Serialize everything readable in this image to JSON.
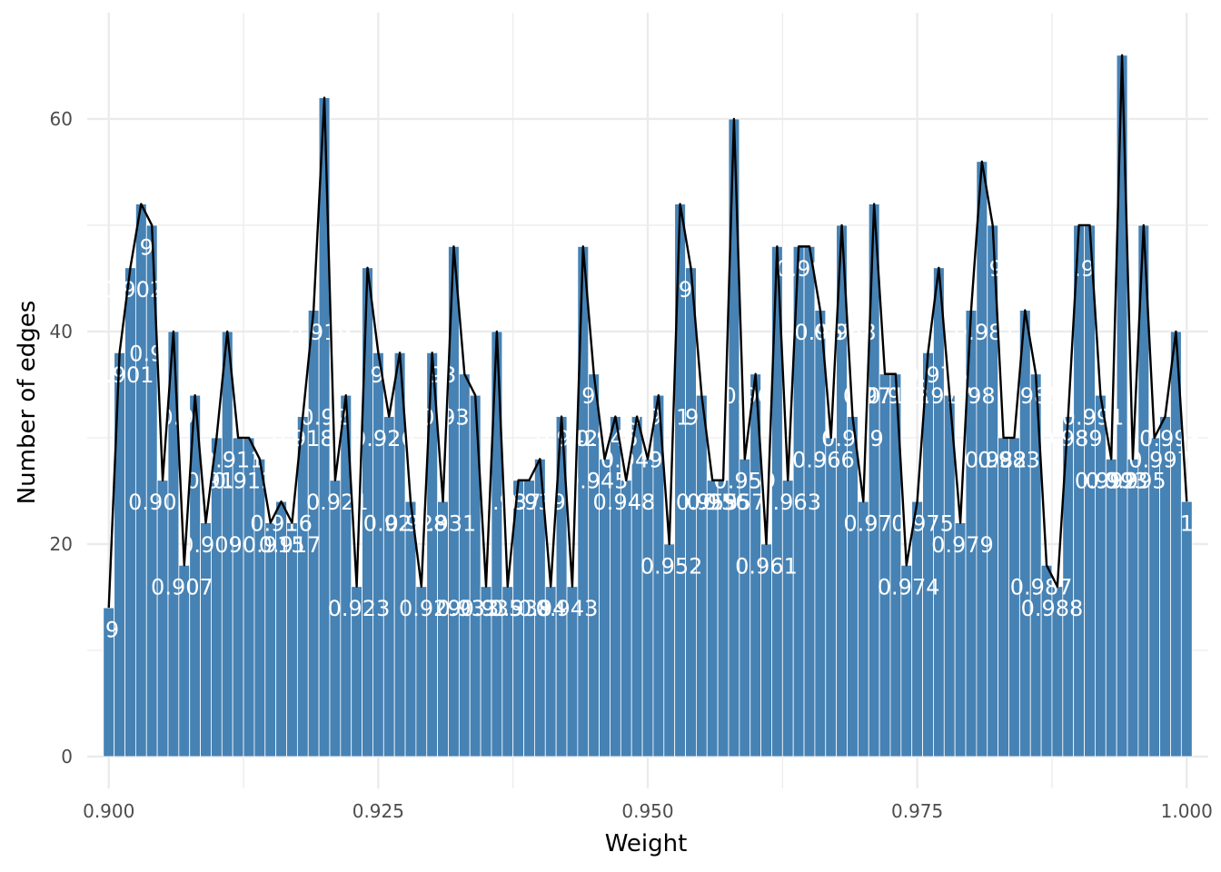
{
  "chart_data": {
    "type": "bar",
    "xlabel": "Weight",
    "ylabel": "Number of edges",
    "xlim": [
      0.898,
      1.002
    ],
    "ylim": [
      -3,
      70
    ],
    "xticks": [
      0.9,
      0.925,
      0.95,
      0.975,
      1.0
    ],
    "xtick_labels": [
      "0.900",
      "0.925",
      "0.950",
      "0.975",
      "1.000"
    ],
    "yticks": [
      0,
      20,
      40,
      60
    ],
    "ytick_labels": [
      "0",
      "20",
      "40",
      "60"
    ],
    "grid": true,
    "bar_color": "#4682b4",
    "line_color": "#000000",
    "bin_width": 0.001,
    "x": [
      0.9,
      0.901,
      0.902,
      0.903,
      0.904,
      0.905,
      0.906,
      0.907,
      0.908,
      0.909,
      0.91,
      0.911,
      0.912,
      0.913,
      0.914,
      0.915,
      0.916,
      0.917,
      0.918,
      0.919,
      0.92,
      0.921,
      0.922,
      0.923,
      0.924,
      0.925,
      0.926,
      0.927,
      0.928,
      0.929,
      0.93,
      0.931,
      0.932,
      0.933,
      0.934,
      0.935,
      0.936,
      0.937,
      0.938,
      0.939,
      0.94,
      0.941,
      0.942,
      0.943,
      0.944,
      0.945,
      0.946,
      0.947,
      0.948,
      0.949,
      0.95,
      0.951,
      0.952,
      0.953,
      0.954,
      0.955,
      0.956,
      0.957,
      0.958,
      0.959,
      0.96,
      0.961,
      0.962,
      0.963,
      0.964,
      0.965,
      0.966,
      0.967,
      0.968,
      0.969,
      0.97,
      0.971,
      0.972,
      0.973,
      0.974,
      0.975,
      0.976,
      0.977,
      0.978,
      0.979,
      0.98,
      0.981,
      0.982,
      0.983,
      0.984,
      0.985,
      0.986,
      0.987,
      0.988,
      0.989,
      0.99,
      0.991,
      0.992,
      0.993,
      0.994,
      0.995,
      0.996,
      0.997,
      0.998,
      0.999,
      1.0
    ],
    "values": [
      14,
      38,
      46,
      52,
      50,
      26,
      40,
      18,
      34,
      22,
      30,
      40,
      30,
      30,
      28,
      22,
      24,
      22,
      32,
      42,
      62,
      26,
      34,
      16,
      46,
      38,
      32,
      38,
      24,
      16,
      38,
      24,
      48,
      36,
      34,
      16,
      40,
      16,
      26,
      26,
      28,
      16,
      32,
      16,
      48,
      36,
      28,
      32,
      26,
      32,
      28,
      34,
      20,
      52,
      46,
      34,
      26,
      26,
      60,
      28,
      36,
      20,
      48,
      26,
      48,
      48,
      42,
      30,
      50,
      32,
      24,
      52,
      36,
      36,
      18,
      24,
      38,
      46,
      34,
      22,
      42,
      56,
      50,
      30,
      30,
      42,
      36,
      18,
      16,
      32,
      50,
      50,
      34,
      28,
      66,
      28,
      50,
      30,
      32,
      40,
      24
    ],
    "bar_labels": [
      {
        "x": 0.9,
        "y": 12,
        "text": ".9"
      },
      {
        "x": 0.9013,
        "y": 36,
        "text": "0.901"
      },
      {
        "x": 0.9022,
        "y": 44,
        "text": "0.902"
      },
      {
        "x": 0.9035,
        "y": 48,
        "text": "9"
      },
      {
        "x": 0.9035,
        "y": 38,
        "text": "0.9"
      },
      {
        "x": 0.9047,
        "y": 24,
        "text": "0.905"
      },
      {
        "x": 0.9068,
        "y": 16,
        "text": "0.907"
      },
      {
        "x": 0.9063,
        "y": 32,
        "text": "0.9"
      },
      {
        "x": 0.9095,
        "y": 20,
        "text": "0.909"
      },
      {
        "x": 0.9094,
        "y": 26,
        "text": "0.91"
      },
      {
        "x": 0.9115,
        "y": 28,
        "text": "0.911"
      },
      {
        "x": 0.9125,
        "y": 26,
        "text": "0.912"
      },
      {
        "x": 0.9153,
        "y": 20,
        "text": "0.915"
      },
      {
        "x": 0.916,
        "y": 22,
        "text": "0.916"
      },
      {
        "x": 0.9168,
        "y": 20,
        "text": "0.917"
      },
      {
        "x": 0.918,
        "y": 30,
        "text": "0.918"
      },
      {
        "x": 0.9196,
        "y": 40,
        "text": "0.919"
      },
      {
        "x": 0.92,
        "y": 32,
        "text": "0.92"
      },
      {
        "x": 0.9212,
        "y": 24,
        "text": "0.921"
      },
      {
        "x": 0.9232,
        "y": 14,
        "text": "0.923"
      },
      {
        "x": 0.9249,
        "y": 36,
        "text": "9"
      },
      {
        "x": 0.9255,
        "y": 30,
        "text": "0.926"
      },
      {
        "x": 0.9265,
        "y": 22,
        "text": "0.927"
      },
      {
        "x": 0.9285,
        "y": 22,
        "text": "0.928"
      },
      {
        "x": 0.9298,
        "y": 14,
        "text": "0.929"
      },
      {
        "x": 0.93,
        "y": 36,
        "text": "0.93"
      },
      {
        "x": 0.9312,
        "y": 22,
        "text": "0.931"
      },
      {
        "x": 0.9312,
        "y": 32,
        "text": "0.93"
      },
      {
        "x": 0.9333,
        "y": 14,
        "text": "0.933"
      },
      {
        "x": 0.9355,
        "y": 14,
        "text": "0.935"
      },
      {
        "x": 0.9372,
        "y": 24,
        "text": "0.937"
      },
      {
        "x": 0.9382,
        "y": 14,
        "text": "0.938"
      },
      {
        "x": 0.9395,
        "y": 24,
        "text": "0.939"
      },
      {
        "x": 0.9402,
        "y": 14,
        "text": "0.94"
      },
      {
        "x": 0.9425,
        "y": 14,
        "text": "0.943"
      },
      {
        "x": 0.9425,
        "y": 30,
        "text": "0.942"
      },
      {
        "x": 0.9445,
        "y": 34,
        "text": "9"
      },
      {
        "x": 0.9453,
        "y": 26,
        "text": "0.945"
      },
      {
        "x": 0.9462,
        "y": 30,
        "text": "0.946"
      },
      {
        "x": 0.9478,
        "y": 24,
        "text": "0.948"
      },
      {
        "x": 0.9485,
        "y": 28,
        "text": "0.949"
      },
      {
        "x": 0.951,
        "y": 32,
        "text": "0.951"
      },
      {
        "x": 0.9522,
        "y": 18,
        "text": "0.952"
      },
      {
        "x": 0.9535,
        "y": 44,
        "text": "9"
      },
      {
        "x": 0.9541,
        "y": 32,
        "text": "9"
      },
      {
        "x": 0.9555,
        "y": 24,
        "text": "0.955"
      },
      {
        "x": 0.9565,
        "y": 24,
        "text": "0.956"
      },
      {
        "x": 0.958,
        "y": 24,
        "text": "0.957"
      },
      {
        "x": 0.959,
        "y": 26,
        "text": "0.959"
      },
      {
        "x": 0.9592,
        "y": 34,
        "text": "0.96"
      },
      {
        "x": 0.961,
        "y": 18,
        "text": "0.961"
      },
      {
        "x": 0.9632,
        "y": 24,
        "text": "0.963"
      },
      {
        "x": 0.9648,
        "y": 46,
        "text": "0.965"
      },
      {
        "x": 0.9663,
        "y": 28,
        "text": "0.966"
      },
      {
        "x": 0.9665,
        "y": 40,
        "text": "0.967"
      },
      {
        "x": 0.9683,
        "y": 40,
        "text": "0.968"
      },
      {
        "x": 0.969,
        "y": 30,
        "text": "0.969"
      },
      {
        "x": 0.9704,
        "y": 22,
        "text": "0.97"
      },
      {
        "x": 0.971,
        "y": 34,
        "text": "0.971"
      },
      {
        "x": 0.9732,
        "y": 34,
        "text": "0.973"
      },
      {
        "x": 0.9742,
        "y": 16,
        "text": "0.974"
      },
      {
        "x": 0.9755,
        "y": 22,
        "text": "0.975"
      },
      {
        "x": 0.9768,
        "y": 36,
        "text": "0.976"
      },
      {
        "x": 0.9772,
        "y": 34,
        "text": "0.977"
      },
      {
        "x": 0.9792,
        "y": 20,
        "text": "0.979"
      },
      {
        "x": 0.98,
        "y": 34,
        "text": "0.98"
      },
      {
        "x": 0.9813,
        "y": 40,
        "text": "0.981"
      },
      {
        "x": 0.9823,
        "y": 46,
        "text": "9"
      },
      {
        "x": 0.9823,
        "y": 28,
        "text": "0.982"
      },
      {
        "x": 0.9835,
        "y": 28,
        "text": "0.983"
      },
      {
        "x": 0.9855,
        "y": 34,
        "text": "0.985"
      },
      {
        "x": 0.9865,
        "y": 16,
        "text": "0.987"
      },
      {
        "x": 0.9875,
        "y": 14,
        "text": "0.988"
      },
      {
        "x": 0.9893,
        "y": 30,
        "text": "0.989"
      },
      {
        "x": 0.9905,
        "y": 46,
        "text": "0.99"
      },
      {
        "x": 0.9913,
        "y": 32,
        "text": "0.991"
      },
      {
        "x": 0.9925,
        "y": 26,
        "text": "0.992"
      },
      {
        "x": 0.9935,
        "y": 26,
        "text": "0.993"
      },
      {
        "x": 0.9952,
        "y": 26,
        "text": "0.995"
      },
      {
        "x": 0.9975,
        "y": 28,
        "text": "0.997"
      },
      {
        "x": 0.9985,
        "y": 30,
        "text": "0.998"
      },
      {
        "x": 1.0,
        "y": 22,
        "text": "1"
      }
    ]
  }
}
